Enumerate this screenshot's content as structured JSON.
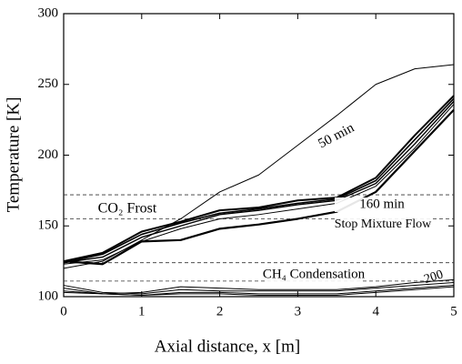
{
  "chart_data": {
    "type": "line",
    "xlabel": "Axial distance, x [m]",
    "ylabel": "Temperature [K]",
    "x": [
      0,
      0.5,
      1,
      1.5,
      2,
      2.5,
      3,
      3.5,
      4,
      4.5,
      5
    ],
    "series": [
      {
        "color": "#000000",
        "values": [
          120,
          125,
          140,
          155,
          174,
          186,
          207,
          228,
          250,
          261,
          264
        ]
      },
      {
        "color": "#000000",
        "values": [
          125,
          131,
          146,
          153,
          161,
          163,
          168,
          170,
          184,
          214,
          242
        ]
      },
      {
        "color": "#000000",
        "values": [
          124,
          130,
          144,
          152,
          159,
          162,
          166,
          169,
          182,
          211,
          240
        ]
      },
      {
        "color": "#000000",
        "values": [
          124,
          128,
          142,
          150,
          158,
          161,
          165,
          168,
          180,
          208,
          238
        ]
      },
      {
        "color": "#000000",
        "values": [
          123,
          126,
          139,
          148,
          155,
          158,
          162,
          166,
          178,
          205,
          236
        ]
      },
      {
        "color": "#000000",
        "values": [
          125,
          123,
          139,
          140,
          148,
          151,
          155,
          160,
          174,
          203,
          232
        ]
      },
      {
        "color": "#000000",
        "values": [
          108,
          103,
          102,
          105,
          104,
          104,
          104,
          104,
          106,
          108,
          110
        ]
      },
      {
        "color": "#000000",
        "values": [
          106,
          102,
          103,
          107,
          106,
          105,
          105,
          105,
          107,
          110,
          112
        ]
      },
      {
        "color": "#000000",
        "values": [
          104,
          102,
          101,
          103,
          103,
          102,
          102,
          102,
          104,
          106,
          108
        ]
      },
      {
        "color": "#000000",
        "values": [
          103,
          102,
          101,
          102,
          102,
          101,
          101,
          101,
          103,
          105,
          107
        ]
      }
    ],
    "hlines": [
      172,
      155,
      124,
      111
    ],
    "annotations": [
      "50 min",
      "CO₂ Frost",
      "160 min",
      "Stop Mixture Flow",
      "CH₄ Condensation",
      "200"
    ],
    "xlim": [
      0,
      5
    ],
    "xticks": [
      0,
      1,
      2,
      3,
      4,
      5
    ],
    "ylim": [
      100,
      300
    ],
    "yticks": [
      100,
      150,
      200,
      250,
      300
    ]
  }
}
